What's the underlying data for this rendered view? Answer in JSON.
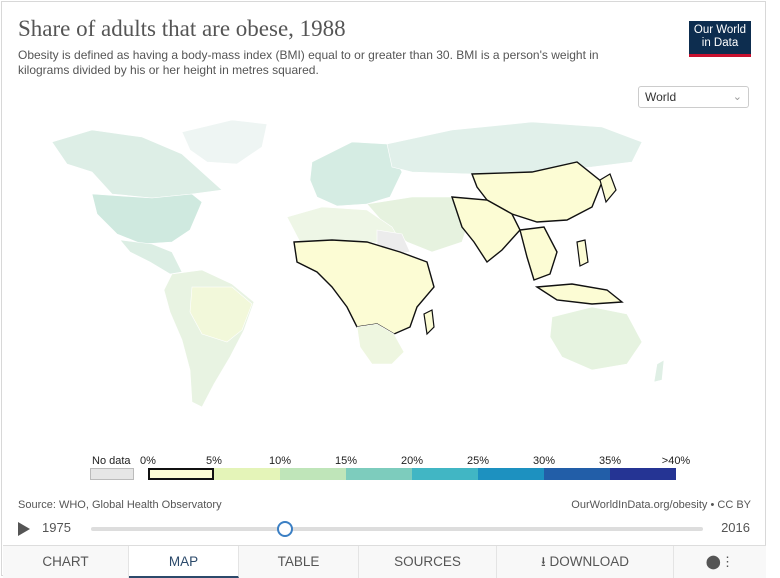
{
  "header": {
    "title": "Share of adults that are obese, 1988",
    "subtitle": "Obesity is defined as having a body-mass index (BMI) equal to or greater than 30. BMI is a person's weight in kilograms divided by his or her height in metres squared.",
    "logo_line1": "Our World",
    "logo_line2": "in Data"
  },
  "region_select": {
    "value": "World"
  },
  "legend": {
    "nodata_label": "No data",
    "labels": [
      "0%",
      "5%",
      "10%",
      "15%",
      "20%",
      "25%",
      "30%",
      "35%",
      ">40%"
    ],
    "colors": [
      "#fcfcd4",
      "#e4f4b8",
      "#bfe5b9",
      "#7dccbd",
      "#41b6c4",
      "#1d91c0",
      "#225ea8",
      "#253494"
    ]
  },
  "footer": {
    "source": "Source: WHO, Global Health Observatory",
    "license": "OurWorldInData.org/obesity • CC BY"
  },
  "timeline": {
    "start": "1975",
    "end": "2016",
    "current_year": 1988
  },
  "tabs": [
    {
      "label": "CHART",
      "active": false
    },
    {
      "label": "MAP",
      "active": true
    },
    {
      "label": "TABLE",
      "active": false
    },
    {
      "label": "SOURCES",
      "active": false
    },
    {
      "label": "DOWNLOAD",
      "active": false
    },
    {
      "label": "",
      "active": false
    }
  ]
}
